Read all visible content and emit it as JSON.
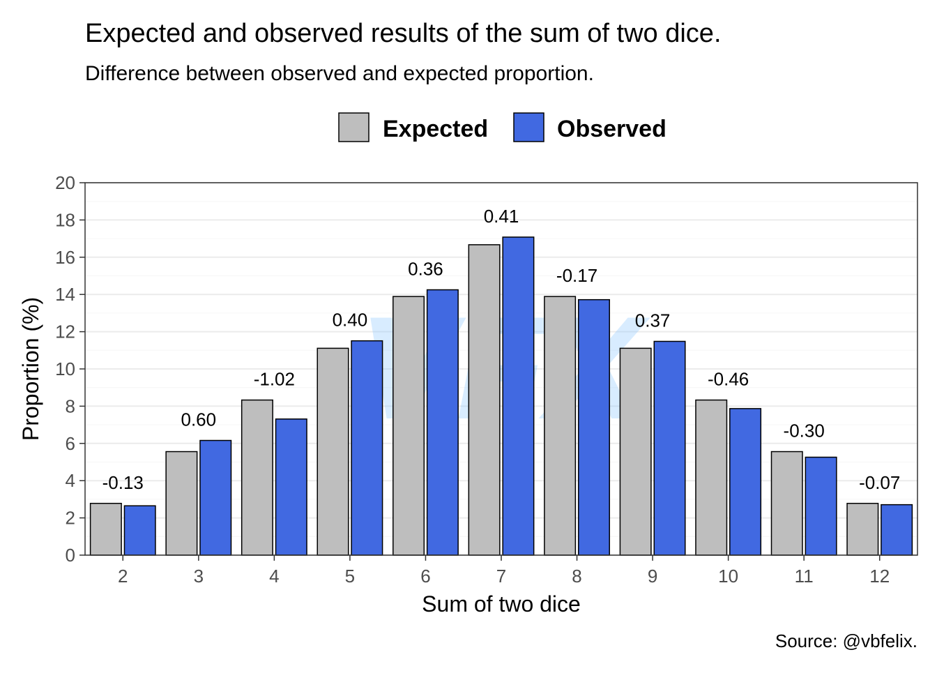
{
  "chart_data": {
    "type": "bar",
    "title": "Expected and observed results of the sum of two dice.",
    "subtitle": "Difference between observed and expected proportion.",
    "xlabel": "Sum of two dice",
    "ylabel": "Proportion (%)",
    "caption": "Source: @vbfelix.",
    "watermark": "VFX",
    "legend_position": "top",
    "grid": true,
    "ylim": [
      0,
      20
    ],
    "yticks": [
      0,
      2,
      4,
      6,
      8,
      10,
      12,
      14,
      16,
      18,
      20
    ],
    "categories": [
      "2",
      "3",
      "4",
      "5",
      "6",
      "7",
      "8",
      "9",
      "10",
      "11",
      "12"
    ],
    "series": [
      {
        "name": "Expected",
        "color": "#bebebe",
        "values": [
          2.78,
          5.56,
          8.33,
          11.11,
          13.89,
          16.67,
          13.89,
          11.11,
          8.33,
          5.56,
          2.78
        ]
      },
      {
        "name": "Observed",
        "color": "#4169e1",
        "values": [
          2.65,
          6.16,
          7.31,
          11.51,
          14.25,
          17.08,
          13.72,
          11.48,
          7.87,
          5.26,
          2.71
        ]
      }
    ],
    "difference_labels": [
      "-0.13",
      "0.60",
      "-1.02",
      "0.40",
      "0.36",
      "0.41",
      "-0.17",
      "0.37",
      "-0.46",
      "-0.30",
      "-0.07"
    ]
  }
}
